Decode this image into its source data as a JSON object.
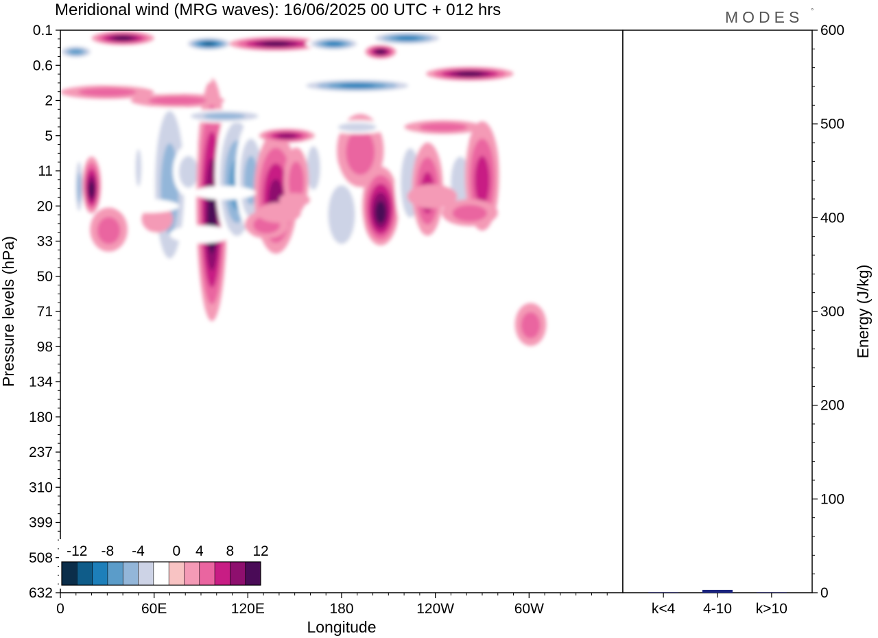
{
  "title": "Meridional wind (MRG waves):  16/06/2025  00 UTC  + 012 hrs",
  "logo": {
    "text": "MODES",
    "mark": "°"
  },
  "chart_data": [
    {
      "type": "heatmap",
      "xlabel": "Longitude",
      "ylabel": "Pressure levels (hPa)",
      "x_ticks": [
        "0",
        "60E",
        "120E",
        "180",
        "120W",
        "60W"
      ],
      "y_ticks": [
        "0.1",
        "0.6",
        "2",
        "5",
        "11",
        "20",
        "33",
        "50",
        "71",
        "98",
        "134",
        "180",
        "237",
        "310",
        "399",
        "508",
        "632"
      ],
      "colorbar": {
        "labels": [
          "-12",
          "-8",
          "-4",
          "0",
          "4",
          "8",
          "12"
        ],
        "levels": [
          -14,
          -12,
          -10,
          -8,
          -6,
          -4,
          -2,
          2,
          4,
          6,
          8,
          10,
          12,
          14
        ],
        "colors": [
          "#0b2e4a",
          "#0f5c89",
          "#1d7fba",
          "#5b9cc9",
          "#93b6d9",
          "#cdd3e6",
          "#ffffff",
          "#f8c3c3",
          "#f49ab6",
          "#ea65a0",
          "#c81d84",
          "#8e0f6e",
          "#4a0b57"
        ]
      },
      "blobs": [
        {
          "x": 12,
          "y": 14,
          "rx": 3,
          "ry": 120,
          "value": -7
        },
        {
          "x": 20,
          "y": 14,
          "rx": 6,
          "ry": 100,
          "value": 11
        },
        {
          "x": 41,
          "y": 7,
          "rx": 3,
          "ry": 80,
          "value": -4
        },
        {
          "x": 50,
          "y": 10,
          "rx": 3,
          "ry": 120,
          "value": -5
        },
        {
          "x": 70,
          "y": 13,
          "rx": 13,
          "ry": 340,
          "value": -7
        },
        {
          "x": 82,
          "y": 11,
          "rx": 10,
          "ry": 100,
          "value": -5
        },
        {
          "x": 97,
          "y": 18,
          "rx": 10,
          "ry": 360,
          "value": 10
        },
        {
          "x": 113,
          "y": 12,
          "rx": 14,
          "ry": 260,
          "value": -9
        },
        {
          "x": 122,
          "y": 12,
          "rx": 10,
          "ry": 200,
          "value": -7
        },
        {
          "x": 138,
          "y": 16,
          "rx": 14,
          "ry": 200,
          "value": 9
        },
        {
          "x": 162,
          "y": 10,
          "rx": 7,
          "ry": 140,
          "value": -6
        },
        {
          "x": 151,
          "y": 13,
          "rx": 8,
          "ry": 120,
          "value": 4
        },
        {
          "x": 180,
          "y": 22,
          "rx": 14,
          "ry": 140,
          "value": -5
        },
        {
          "x": 192,
          "y": 7,
          "rx": 15,
          "ry": 160,
          "value": 5
        },
        {
          "x": 205,
          "y": 20,
          "rx": 12,
          "ry": 120,
          "value": 12
        },
        {
          "x": 224,
          "y": 13,
          "rx": 10,
          "ry": 200,
          "value": -5
        },
        {
          "x": 235,
          "y": 15,
          "rx": 10,
          "ry": 160,
          "value": 6
        },
        {
          "x": 256,
          "y": 13,
          "rx": 10,
          "ry": 150,
          "value": -5
        },
        {
          "x": 270,
          "y": 12,
          "rx": 11,
          "ry": 200,
          "value": 6
        },
        {
          "x": 287,
          "y": 13,
          "rx": 6,
          "ry": 120,
          "value": -3
        },
        {
          "x": 301,
          "y": 80,
          "rx": 10,
          "ry": 40,
          "value": 4
        },
        {
          "x": 31,
          "y": 28,
          "rx": 12,
          "ry": 60,
          "value": 4
        },
        {
          "x": 62,
          "y": 24,
          "rx": 10,
          "ry": 40,
          "value": 3
        },
        {
          "x": 132,
          "y": 26,
          "rx": 14,
          "ry": 40,
          "value": 4
        },
        {
          "x": 56,
          "y": 20,
          "rx": 20,
          "ry": 20,
          "value": -3
        },
        {
          "x": 105,
          "y": 16,
          "rx": 20,
          "ry": 15,
          "value": -3
        },
        {
          "x": 140,
          "y": 22,
          "rx": 14,
          "ry": 30,
          "value": 3
        },
        {
          "x": 238,
          "y": 17,
          "rx": 16,
          "ry": 40,
          "value": 3
        },
        {
          "x": 262,
          "y": 22,
          "rx": 18,
          "ry": 40,
          "value": 4
        },
        {
          "x": 10,
          "y": 0.3,
          "rx": 12,
          "ry": 6,
          "value": -10
        },
        {
          "x": 40,
          "y": 0.15,
          "rx": 20,
          "ry": 2,
          "value": 14
        },
        {
          "x": 62,
          "y": 1.0,
          "rx": 35,
          "ry": 4,
          "value": -4
        },
        {
          "x": 30,
          "y": 1.5,
          "rx": 30,
          "ry": 4,
          "value": 4
        },
        {
          "x": 95,
          "y": 0.2,
          "rx": 16,
          "ry": 3,
          "value": -13
        },
        {
          "x": 138,
          "y": 0.2,
          "rx": 30,
          "ry": 3,
          "value": 14
        },
        {
          "x": 175,
          "y": 0.2,
          "rx": 18,
          "ry": 3,
          "value": -12
        },
        {
          "x": 205,
          "y": 0.3,
          "rx": 10,
          "ry": 2,
          "value": 10
        },
        {
          "x": 222,
          "y": 0.15,
          "rx": 25,
          "ry": 2,
          "value": -12
        },
        {
          "x": 190,
          "y": 1.2,
          "rx": 40,
          "ry": 4,
          "value": -11
        },
        {
          "x": 262,
          "y": 0.8,
          "rx": 28,
          "ry": 10,
          "value": 14
        },
        {
          "x": 245,
          "y": 4,
          "rx": 25,
          "ry": 12,
          "value": 5
        },
        {
          "x": 105,
          "y": 3,
          "rx": 30,
          "ry": 12,
          "value": -7
        },
        {
          "x": 145,
          "y": 5,
          "rx": 18,
          "ry": 12,
          "value": 9
        },
        {
          "x": 75,
          "y": 2.0,
          "rx": 30,
          "ry": 6,
          "value": 5
        },
        {
          "x": 190,
          "y": 4,
          "rx": 20,
          "ry": 10,
          "value": -5
        },
        {
          "x": 90,
          "y": 30,
          "rx": 20,
          "ry": 25,
          "value": -3
        },
        {
          "x": 150,
          "y": 18,
          "rx": 10,
          "ry": 20,
          "value": 3
        }
      ]
    },
    {
      "type": "bar",
      "categories": [
        "k<4",
        "4-10",
        "k>10"
      ],
      "values": [
        0,
        3,
        0
      ],
      "ylabel": "Energy (J/kg)",
      "ylim": [
        0,
        600
      ],
      "y_ticks": [
        "0",
        "100",
        "200",
        "300",
        "400",
        "500",
        "600"
      ],
      "bar_color": "#1a237e"
    }
  ]
}
